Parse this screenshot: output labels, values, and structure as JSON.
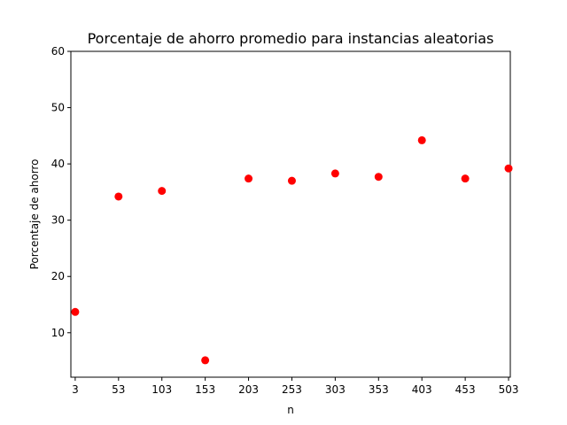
{
  "chart_data": {
    "type": "scatter",
    "title": "Porcentaje de ahorro promedio para instancias aleatorias",
    "xlabel": "n",
    "ylabel": "Porcentaje de ahorro",
    "x": [
      3,
      53,
      103,
      153,
      203,
      253,
      303,
      353,
      403,
      453,
      503
    ],
    "y": [
      13.7,
      34.2,
      35.2,
      5.1,
      37.4,
      37.0,
      38.3,
      37.7,
      44.2,
      37.4,
      39.2
    ],
    "x_ticks": [
      "3",
      "53",
      "103",
      "153",
      "203",
      "253",
      "303",
      "353",
      "403",
      "453",
      "503"
    ],
    "y_ticks": [
      "10",
      "20",
      "30",
      "40",
      "50",
      "60"
    ],
    "xlim": [
      -2,
      505
    ],
    "ylim": [
      2.1,
      60
    ],
    "marker_color": "#ff0000",
    "grid": false,
    "legend": "none"
  }
}
